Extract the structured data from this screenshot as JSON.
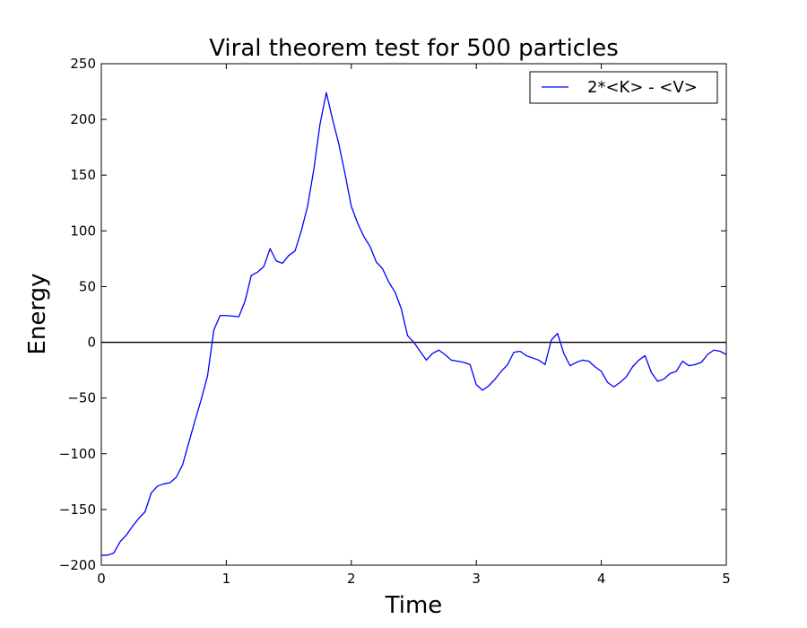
{
  "chart_data": {
    "type": "line",
    "title": "Viral theorem test for 500 particles",
    "xlabel": "Time",
    "ylabel": "Energy",
    "xlim": [
      0,
      5
    ],
    "ylim": [
      -200,
      250
    ],
    "xticks": [
      0,
      1,
      2,
      3,
      4,
      5
    ],
    "xtick_labels": [
      "0",
      "1",
      "2",
      "3",
      "4",
      "5"
    ],
    "yticks": [
      -200,
      -150,
      -100,
      -50,
      0,
      50,
      100,
      150,
      200,
      250
    ],
    "ytick_labels": [
      "−200",
      "−150",
      "−100",
      "−50",
      "0",
      "50",
      "100",
      "150",
      "200",
      "250"
    ],
    "grid": false,
    "legend_position": "top-right",
    "reference_line": {
      "y": 0,
      "color": "#000000"
    },
    "series": [
      {
        "name": "2*<K> - <V>",
        "color": "#0000ff",
        "x": [
          0,
          0.05,
          0.1,
          0.15,
          0.2,
          0.25,
          0.3,
          0.35,
          0.4,
          0.45,
          0.5,
          0.55,
          0.6,
          0.65,
          0.7,
          0.75,
          0.8,
          0.85,
          0.9,
          0.95,
          1.0,
          1.05,
          1.1,
          1.15,
          1.2,
          1.25,
          1.3,
          1.35,
          1.4,
          1.45,
          1.5,
          1.55,
          1.6,
          1.65,
          1.7,
          1.75,
          1.8,
          1.85,
          1.9,
          1.95,
          2.0,
          2.05,
          2.1,
          2.15,
          2.2,
          2.25,
          2.3,
          2.35,
          2.4,
          2.45,
          2.5,
          2.55,
          2.6,
          2.65,
          2.7,
          2.75,
          2.8,
          2.85,
          2.9,
          2.95,
          3.0,
          3.05,
          3.1,
          3.15,
          3.2,
          3.25,
          3.3,
          3.35,
          3.4,
          3.45,
          3.5,
          3.55,
          3.6,
          3.65,
          3.7,
          3.75,
          3.8,
          3.85,
          3.9,
          3.95,
          4.0,
          4.05,
          4.1,
          4.15,
          4.2,
          4.25,
          4.3,
          4.35,
          4.4,
          4.45,
          4.5,
          4.55,
          4.6,
          4.65,
          4.7,
          4.75,
          4.8,
          4.85,
          4.9,
          4.95,
          5.0
        ],
        "y": [
          -191,
          -191,
          -189,
          -179,
          -173,
          -165,
          -158,
          -152,
          -135,
          -129,
          -127,
          -126,
          -121,
          -110,
          -90,
          -70,
          -51,
          -30,
          11,
          24,
          24,
          23.5,
          23,
          37,
          60,
          63,
          68,
          84,
          73,
          71,
          78,
          82,
          100,
          122,
          155,
          196,
          224,
          200,
          178,
          151,
          122,
          107,
          95,
          86,
          72,
          66,
          54,
          45,
          30,
          6,
          0,
          -8,
          -16,
          -10,
          -7,
          -11,
          -16,
          -17,
          -18,
          -20,
          -38,
          -43,
          -39,
          -33,
          -26,
          -20,
          -9,
          -8,
          -12,
          -14,
          -16,
          -20,
          2,
          8,
          -10,
          -21,
          -18,
          -16,
          -17,
          -22,
          -26,
          -36,
          -40,
          -36,
          -31,
          -22,
          -16,
          -12,
          -27,
          -35,
          -33,
          -28,
          -26,
          -17,
          -21,
          -20,
          -18,
          -11,
          -7,
          -8,
          -11
        ]
      }
    ]
  }
}
